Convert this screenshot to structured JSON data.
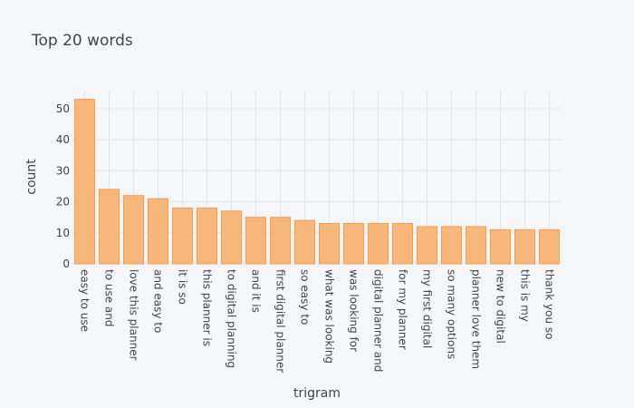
{
  "chart_data": {
    "type": "bar",
    "title": "Top 20 words",
    "xlabel": "trigram",
    "ylabel": "count",
    "categories": [
      "easy to use",
      "to use and",
      "love this planner",
      "and easy to",
      "it is so",
      "this planner is",
      "to digital planning",
      "and it is",
      "first digital planner",
      "so easy to",
      "what was looking",
      "was looking for",
      "digital planner and",
      "for my planner",
      "my first digital",
      "so many options",
      "planner love them",
      "new to digital",
      "this is my",
      "thank you so"
    ],
    "values": [
      53,
      24,
      22,
      21,
      18,
      18,
      17,
      15,
      15,
      14,
      13,
      13,
      13,
      13,
      12,
      12,
      12,
      11,
      11,
      11
    ],
    "yticks": [
      0,
      10,
      20,
      30,
      40,
      50
    ],
    "ylim": [
      0,
      55.8
    ],
    "grid": true,
    "colors": {
      "bar_fill": "#f7b67a",
      "bar_stroke": "#f2a050",
      "background": "#f5f6fa",
      "grid": "#e3e5ec"
    }
  }
}
